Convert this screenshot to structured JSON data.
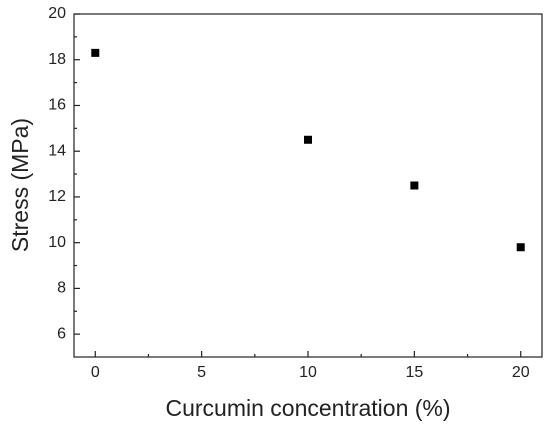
{
  "chart_data": {
    "type": "scatter",
    "x_label": "Curcumin concentration (%)",
    "y_label": "Stress (MPa)",
    "series": [
      {
        "color": "#000000",
        "x": [
          0,
          10,
          15,
          20
        ],
        "values": [
          18.3,
          14.5,
          12.5,
          9.8
        ]
      }
    ],
    "xlim": [
      -1,
      21
    ],
    "ylim": [
      5,
      20
    ],
    "xticks": [
      0,
      5,
      10,
      15,
      20
    ],
    "yticks": [
      6,
      8,
      10,
      12,
      14,
      16,
      18,
      20
    ]
  }
}
